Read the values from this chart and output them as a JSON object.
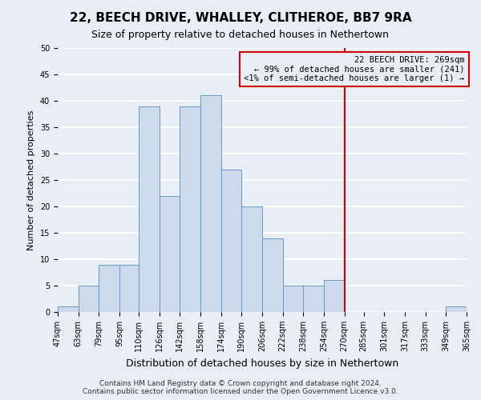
{
  "title": "22, BEECH DRIVE, WHALLEY, CLITHEROE, BB7 9RA",
  "subtitle": "Size of property relative to detached houses in Nethertown",
  "xlabel": "Distribution of detached houses by size in Nethertown",
  "ylabel": "Number of detached properties",
  "bin_edges": [
    47,
    63,
    79,
    95,
    110,
    126,
    142,
    158,
    174,
    190,
    206,
    222,
    238,
    254,
    270,
    285,
    301,
    317,
    333,
    349,
    365
  ],
  "bin_labels": [
    "47sqm",
    "63sqm",
    "79sqm",
    "95sqm",
    "110sqm",
    "126sqm",
    "142sqm",
    "158sqm",
    "174sqm",
    "190sqm",
    "206sqm",
    "222sqm",
    "238sqm",
    "254sqm",
    "270sqm",
    "285sqm",
    "301sqm",
    "317sqm",
    "333sqm",
    "349sqm",
    "365sqm"
  ],
  "counts": [
    1,
    5,
    9,
    9,
    39,
    22,
    39,
    41,
    27,
    20,
    14,
    5,
    5,
    6,
    0,
    0,
    0,
    0,
    0,
    1
  ],
  "bar_facecolor": "#cddaeb",
  "bar_edgecolor": "#6699cc",
  "vline_x": 270,
  "vline_color": "#cc0000",
  "ylim": [
    0,
    50
  ],
  "yticks": [
    0,
    5,
    10,
    15,
    20,
    25,
    30,
    35,
    40,
    45,
    50
  ],
  "annotation_title": "22 BEECH DRIVE: 269sqm",
  "annotation_line1": "← 99% of detached houses are smaller (241)",
  "annotation_line2": "<1% of semi-detached houses are larger (1) →",
  "annotation_box_color": "#cc0000",
  "footer1": "Contains HM Land Registry data © Crown copyright and database right 2024.",
  "footer2": "Contains public sector information licensed under the Open Government Licence v3.0.",
  "background_color": "#e8eef5",
  "grid_color": "#ffffff",
  "title_fontsize": 11,
  "subtitle_fontsize": 9,
  "xlabel_fontsize": 9,
  "ylabel_fontsize": 8,
  "tick_fontsize": 7,
  "footer_fontsize": 6.5
}
